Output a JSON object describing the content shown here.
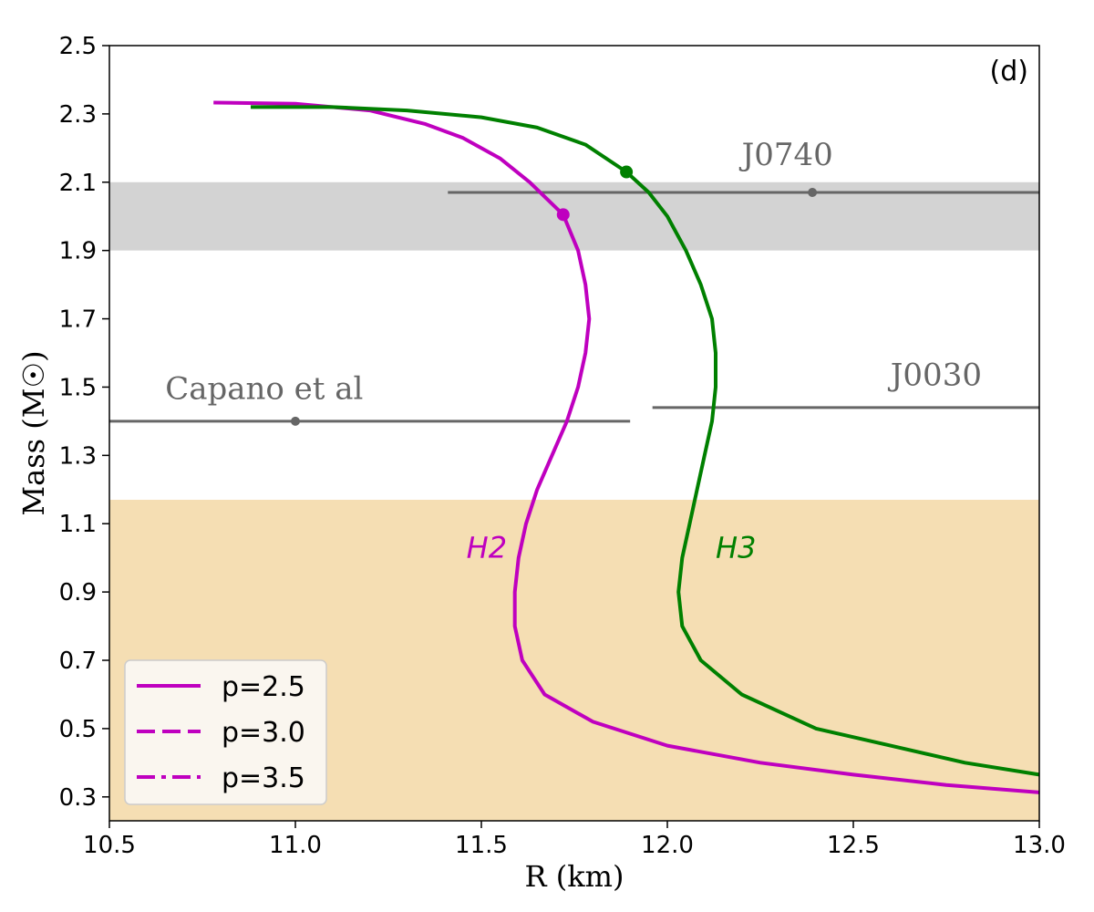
{
  "chart_data": {
    "type": "line",
    "panel_label": "(d)",
    "xlabel": "R (km)",
    "ylabel": "Mass (M☉)",
    "xlim": [
      10.5,
      13.0
    ],
    "ylim": [
      0.23,
      2.5
    ],
    "xticks": [
      "10.5",
      "11.0",
      "11.5",
      "12.0",
      "12.5",
      "13.0"
    ],
    "yticks": [
      "0.3",
      "0.5",
      "0.7",
      "0.9",
      "1.1",
      "1.3",
      "1.5",
      "1.7",
      "1.9",
      "2.1",
      "2.3",
      "2.5"
    ],
    "grid": false,
    "legend_position": "lower-left",
    "colors": {
      "H2": "#bf00bf",
      "H3": "#008000",
      "annotation": "#666666",
      "gray_band": "#d3d3d3",
      "tan_band": "#f5deb3"
    },
    "bands": [
      {
        "name": "gray",
        "y": [
          1.9,
          2.1
        ]
      },
      {
        "name": "tan",
        "y": [
          0.23,
          1.17
        ]
      }
    ],
    "constraints": [
      {
        "label": "J0740",
        "center": [
          12.39,
          2.07
        ],
        "xerr": [
          11.41,
          13.0
        ]
      },
      {
        "label": "Capano et al",
        "center": [
          11.0,
          1.4
        ],
        "xerr": [
          10.5,
          11.9
        ]
      },
      {
        "label": "J0030",
        "center": null,
        "xerr": [
          11.96,
          13.0
        ],
        "y": 1.44
      }
    ],
    "curve_labels": [
      "H2",
      "H3"
    ],
    "legend": [
      {
        "label": "p=2.5",
        "style": "solid"
      },
      {
        "label": "p=3.0",
        "style": "dashed"
      },
      {
        "label": "p=3.5",
        "style": "dashdot"
      }
    ],
    "series": [
      {
        "name": "H2",
        "color": "#bf00bf",
        "points": [
          [
            10.78,
            2.333
          ],
          [
            11.0,
            2.33
          ],
          [
            11.2,
            2.31
          ],
          [
            11.35,
            2.27
          ],
          [
            11.45,
            2.23
          ],
          [
            11.55,
            2.17
          ],
          [
            11.63,
            2.1
          ],
          [
            11.72,
            2.005
          ],
          [
            11.76,
            1.9
          ],
          [
            11.78,
            1.8
          ],
          [
            11.79,
            1.7
          ],
          [
            11.78,
            1.6
          ],
          [
            11.76,
            1.5
          ],
          [
            11.73,
            1.4
          ],
          [
            11.69,
            1.3
          ],
          [
            11.65,
            1.2
          ],
          [
            11.62,
            1.1
          ],
          [
            11.6,
            1.0
          ],
          [
            11.59,
            0.9
          ],
          [
            11.59,
            0.8
          ],
          [
            11.61,
            0.7
          ],
          [
            11.67,
            0.6
          ],
          [
            11.8,
            0.52
          ],
          [
            12.0,
            0.45
          ],
          [
            12.25,
            0.4
          ],
          [
            12.5,
            0.365
          ],
          [
            12.75,
            0.335
          ],
          [
            13.0,
            0.313
          ]
        ],
        "marker": [
          11.72,
          2.005
        ]
      },
      {
        "name": "H3",
        "color": "#008000",
        "points": [
          [
            10.88,
            2.32
          ],
          [
            11.1,
            2.32
          ],
          [
            11.3,
            2.31
          ],
          [
            11.5,
            2.29
          ],
          [
            11.65,
            2.26
          ],
          [
            11.78,
            2.21
          ],
          [
            11.89,
            2.13
          ],
          [
            11.95,
            2.07
          ],
          [
            12.0,
            2.0
          ],
          [
            12.05,
            1.9
          ],
          [
            12.09,
            1.8
          ],
          [
            12.12,
            1.7
          ],
          [
            12.13,
            1.6
          ],
          [
            12.13,
            1.5
          ],
          [
            12.12,
            1.4
          ],
          [
            12.1,
            1.3
          ],
          [
            12.08,
            1.2
          ],
          [
            12.06,
            1.1
          ],
          [
            12.04,
            1.0
          ],
          [
            12.03,
            0.9
          ],
          [
            12.04,
            0.8
          ],
          [
            12.09,
            0.7
          ],
          [
            12.2,
            0.6
          ],
          [
            12.4,
            0.5
          ],
          [
            12.6,
            0.45
          ],
          [
            12.8,
            0.4
          ],
          [
            13.0,
            0.365
          ]
        ],
        "marker": [
          11.89,
          2.13
        ]
      }
    ]
  }
}
